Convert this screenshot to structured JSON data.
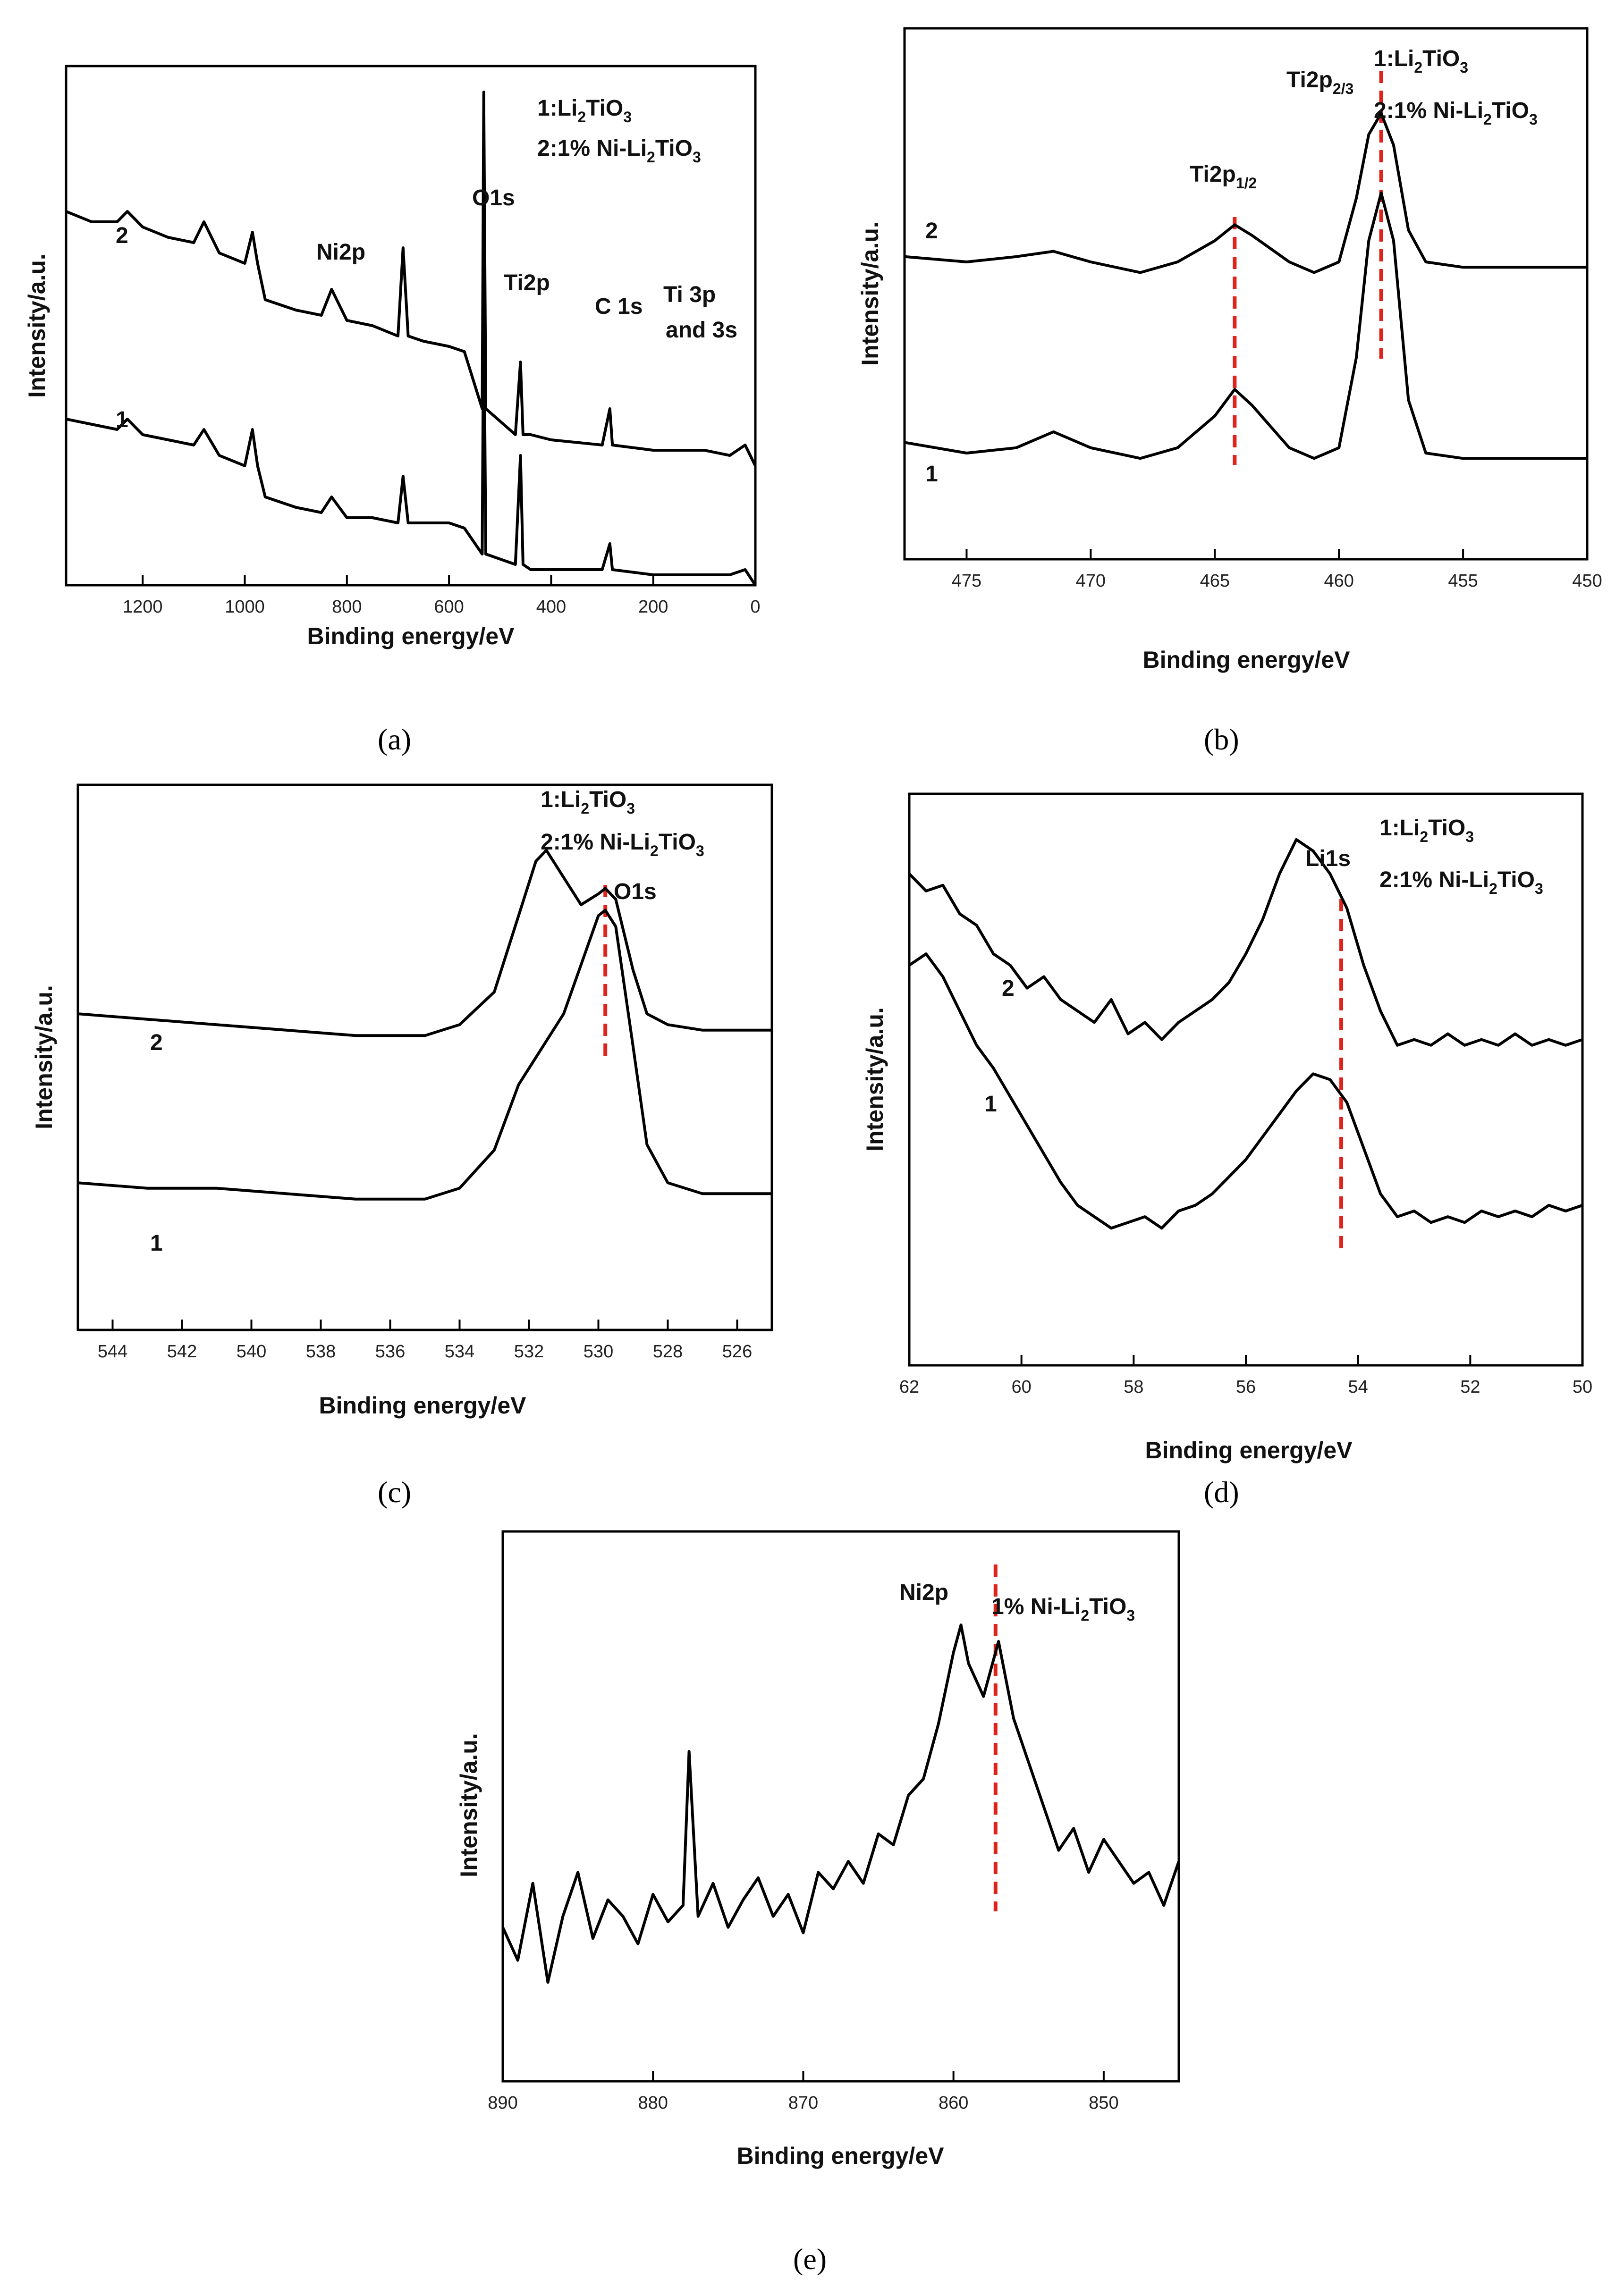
{
  "chart_data": [
    {
      "panel": "a",
      "type": "line",
      "caption": "(a)",
      "xlabel": "Binding energy/eV",
      "ylabel": "Intensity/a.u.",
      "xlim": [
        1350,
        0
      ],
      "xticks": [
        1200,
        1000,
        800,
        600,
        400,
        200,
        0
      ],
      "legend": [
        "1:Li2TiO3",
        "2:1% Ni-Li2TiO3"
      ],
      "annotations": [
        "O1s",
        "Ni2p",
        "Ti2p",
        "C 1s",
        "Ti 3p",
        "and 3s"
      ],
      "series": [
        {
          "name": "2",
          "label_text": "2",
          "x": [
            1350,
            1300,
            1250,
            1230,
            1200,
            1150,
            1100,
            1080,
            1050,
            1000,
            985,
            975,
            960,
            900,
            850,
            830,
            800,
            750,
            700,
            690,
            680,
            650,
            600,
            570,
            535,
            532,
            528,
            470,
            460,
            455,
            440,
            400,
            300,
            285,
            280,
            200,
            100,
            50,
            20,
            0
          ],
          "y": [
            0.72,
            0.7,
            0.7,
            0.72,
            0.69,
            0.67,
            0.66,
            0.7,
            0.64,
            0.62,
            0.68,
            0.62,
            0.55,
            0.53,
            0.52,
            0.57,
            0.51,
            0.5,
            0.48,
            0.65,
            0.48,
            0.47,
            0.46,
            0.45,
            0.34,
            0.95,
            0.34,
            0.29,
            0.43,
            0.29,
            0.29,
            0.28,
            0.27,
            0.34,
            0.27,
            0.26,
            0.26,
            0.25,
            0.27,
            0.23
          ]
        },
        {
          "name": "1",
          "label_text": "1",
          "x": [
            1350,
            1300,
            1250,
            1230,
            1200,
            1150,
            1100,
            1080,
            1050,
            1000,
            985,
            975,
            960,
            900,
            850,
            830,
            800,
            750,
            700,
            690,
            680,
            650,
            600,
            570,
            535,
            532,
            528,
            470,
            460,
            455,
            440,
            400,
            300,
            285,
            280,
            200,
            100,
            50,
            20,
            0
          ],
          "y": [
            0.32,
            0.31,
            0.3,
            0.32,
            0.29,
            0.28,
            0.27,
            0.3,
            0.25,
            0.23,
            0.3,
            0.23,
            0.17,
            0.15,
            0.14,
            0.17,
            0.13,
            0.13,
            0.12,
            0.21,
            0.12,
            0.12,
            0.12,
            0.11,
            0.06,
            0.58,
            0.06,
            0.04,
            0.25,
            0.04,
            0.03,
            0.03,
            0.03,
            0.08,
            0.03,
            0.02,
            0.02,
            0.02,
            0.03,
            0.0
          ]
        }
      ]
    },
    {
      "panel": "b",
      "type": "line",
      "caption": "(b)",
      "xlabel": "Binding energy/eV",
      "ylabel": "Intensity/a.u.",
      "xlim": [
        477.5,
        450
      ],
      "xticks": [
        475,
        470,
        465,
        460,
        455,
        450
      ],
      "legend": [
        "1:Li2TiO3",
        "2:1% Ni-Li2TiO3"
      ],
      "annotations": [
        "Ti2p",
        "2/3",
        "Ti2p",
        "1/2"
      ],
      "markers": [
        464.2,
        458.3
      ],
      "series": [
        {
          "name": "2",
          "label_text": "2",
          "x": [
            477.5,
            475,
            473,
            471.5,
            470,
            468,
            466.5,
            465,
            464.2,
            463.5,
            462,
            461,
            460,
            459.3,
            458.8,
            458.3,
            457.8,
            457.2,
            456.5,
            455,
            453,
            450
          ],
          "y": [
            0.57,
            0.56,
            0.57,
            0.58,
            0.56,
            0.54,
            0.56,
            0.6,
            0.63,
            0.61,
            0.56,
            0.54,
            0.56,
            0.68,
            0.8,
            0.84,
            0.78,
            0.62,
            0.56,
            0.55,
            0.55,
            0.55
          ]
        },
        {
          "name": "1",
          "label_text": "1",
          "x": [
            477.5,
            475,
            473,
            471.5,
            470,
            468,
            466.5,
            465,
            464.2,
            463.5,
            462,
            461,
            460,
            459.3,
            458.8,
            458.3,
            457.8,
            457.2,
            456.5,
            455,
            453,
            450
          ],
          "y": [
            0.22,
            0.2,
            0.21,
            0.24,
            0.21,
            0.19,
            0.21,
            0.27,
            0.32,
            0.29,
            0.21,
            0.19,
            0.21,
            0.38,
            0.6,
            0.69,
            0.6,
            0.3,
            0.2,
            0.19,
            0.19,
            0.19
          ]
        }
      ]
    },
    {
      "panel": "c",
      "type": "line",
      "caption": "(c)",
      "xlabel": "Binding energy/eV",
      "ylabel": "Intensity/a.u.",
      "xlim": [
        545,
        525
      ],
      "xticks": [
        544,
        542,
        540,
        538,
        536,
        534,
        532,
        530,
        528,
        526
      ],
      "legend": [
        "1:Li2TiO3",
        "2:1% Ni-Li2TiO3"
      ],
      "annotations": [
        "O1s"
      ],
      "markers": [
        529.8
      ],
      "series": [
        {
          "name": "2",
          "label_text": "2",
          "x": [
            545,
            543,
            541,
            539,
            537,
            535,
            534,
            533,
            532.3,
            531.8,
            531.5,
            531,
            530.5,
            530,
            529.8,
            529.5,
            529,
            528.6,
            528,
            527,
            526,
            525
          ],
          "y": [
            0.58,
            0.57,
            0.56,
            0.55,
            0.54,
            0.54,
            0.56,
            0.62,
            0.76,
            0.86,
            0.88,
            0.83,
            0.78,
            0.8,
            0.81,
            0.79,
            0.66,
            0.58,
            0.56,
            0.55,
            0.55,
            0.55
          ]
        },
        {
          "name": "1",
          "label_text": "1",
          "x": [
            545,
            543,
            541,
            539,
            537,
            535,
            534,
            533,
            532.3,
            531.5,
            531,
            530.5,
            530,
            529.8,
            529.5,
            529,
            528.6,
            528,
            527,
            526,
            525
          ],
          "y": [
            0.27,
            0.26,
            0.26,
            0.25,
            0.24,
            0.24,
            0.26,
            0.33,
            0.45,
            0.53,
            0.58,
            0.67,
            0.76,
            0.77,
            0.74,
            0.52,
            0.34,
            0.27,
            0.25,
            0.25,
            0.25
          ]
        }
      ]
    },
    {
      "panel": "d",
      "type": "line",
      "caption": "(d)",
      "xlabel": "Binding energy/eV",
      "ylabel": "Intensity/a.u.",
      "xlim": [
        62,
        50
      ],
      "xticks": [
        62,
        60,
        58,
        56,
        54,
        52,
        50
      ],
      "legend": [
        "1:Li2TiO3",
        "2:1% Ni-Li2TiO3"
      ],
      "annotations": [
        "Li1s"
      ],
      "markers": [
        54.3
      ],
      "series": [
        {
          "name": "2",
          "label_text": "2",
          "x": [
            62,
            61.7,
            61.4,
            61.1,
            60.8,
            60.5,
            60.2,
            59.9,
            59.6,
            59.3,
            59,
            58.7,
            58.4,
            58.1,
            57.8,
            57.5,
            57.2,
            56.9,
            56.6,
            56.3,
            56,
            55.7,
            55.4,
            55.1,
            54.8,
            54.5,
            54.2,
            53.9,
            53.6,
            53.3,
            53,
            52.7,
            52.4,
            52.1,
            51.8,
            51.5,
            51.2,
            50.9,
            50.6,
            50.3,
            50
          ],
          "y": [
            0.86,
            0.83,
            0.84,
            0.79,
            0.77,
            0.72,
            0.7,
            0.66,
            0.68,
            0.64,
            0.62,
            0.6,
            0.64,
            0.58,
            0.6,
            0.57,
            0.6,
            0.62,
            0.64,
            0.67,
            0.72,
            0.78,
            0.86,
            0.92,
            0.9,
            0.86,
            0.8,
            0.7,
            0.62,
            0.56,
            0.57,
            0.56,
            0.58,
            0.56,
            0.57,
            0.56,
            0.58,
            0.56,
            0.57,
            0.56,
            0.57
          ]
        },
        {
          "name": "1",
          "label_text": "1",
          "x": [
            62,
            61.7,
            61.4,
            61.1,
            60.8,
            60.5,
            60.2,
            59.9,
            59.6,
            59.3,
            59,
            58.7,
            58.4,
            58.1,
            57.8,
            57.5,
            57.2,
            56.9,
            56.6,
            56.3,
            56,
            55.7,
            55.4,
            55.1,
            54.8,
            54.5,
            54.2,
            53.9,
            53.6,
            53.3,
            53,
            52.7,
            52.4,
            52.1,
            51.8,
            51.5,
            51.2,
            50.9,
            50.6,
            50.3,
            50
          ],
          "y": [
            0.7,
            0.72,
            0.68,
            0.62,
            0.56,
            0.52,
            0.47,
            0.42,
            0.37,
            0.32,
            0.28,
            0.26,
            0.24,
            0.25,
            0.26,
            0.24,
            0.27,
            0.28,
            0.3,
            0.33,
            0.36,
            0.4,
            0.44,
            0.48,
            0.51,
            0.5,
            0.46,
            0.38,
            0.3,
            0.26,
            0.27,
            0.25,
            0.26,
            0.25,
            0.27,
            0.26,
            0.27,
            0.26,
            0.28,
            0.27,
            0.28
          ]
        }
      ]
    },
    {
      "panel": "e",
      "type": "line",
      "caption": "(e)",
      "xlabel": "Binding energy/eV",
      "ylabel": "Intensity/a.u.",
      "xlim": [
        890,
        845
      ],
      "xticks": [
        890,
        880,
        870,
        860,
        850
      ],
      "legend": [
        "1% Ni-Li2TiO3"
      ],
      "annotations": [
        "Ni2p"
      ],
      "markers": [
        857.2
      ],
      "series": [
        {
          "name": "1% Ni-Li2TiO3",
          "label_text": "",
          "x": [
            890,
            889,
            888,
            887,
            886,
            885,
            884,
            883,
            882,
            881,
            880,
            879,
            878,
            877.6,
            877,
            876,
            875,
            874,
            873,
            872,
            871,
            870,
            869,
            868,
            867,
            866,
            865,
            864,
            863,
            862,
            861,
            860,
            859.5,
            859,
            858,
            857,
            856,
            855,
            854,
            853,
            852,
            851,
            850,
            849,
            848,
            847,
            846,
            845
          ],
          "y": [
            0.28,
            0.22,
            0.36,
            0.18,
            0.3,
            0.38,
            0.26,
            0.33,
            0.3,
            0.25,
            0.34,
            0.29,
            0.32,
            0.6,
            0.3,
            0.36,
            0.28,
            0.33,
            0.37,
            0.3,
            0.34,
            0.27,
            0.38,
            0.35,
            0.4,
            0.36,
            0.45,
            0.43,
            0.52,
            0.55,
            0.65,
            0.78,
            0.83,
            0.76,
            0.7,
            0.8,
            0.66,
            0.58,
            0.5,
            0.42,
            0.46,
            0.38,
            0.44,
            0.4,
            0.36,
            0.38,
            0.32,
            0.4
          ]
        }
      ]
    }
  ]
}
